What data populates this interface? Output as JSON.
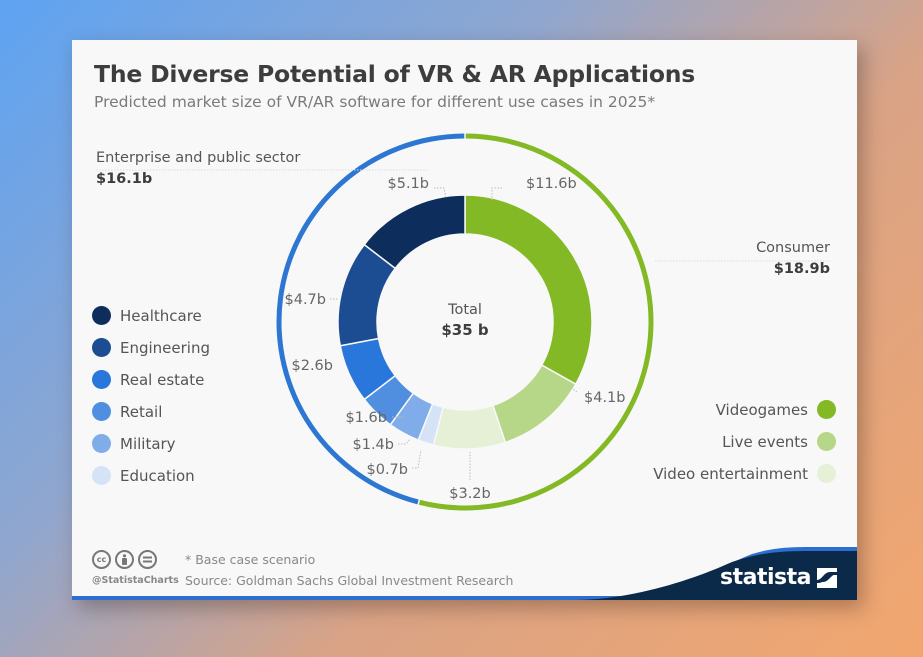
{
  "title": "The Diverse Potential of VR & AR Applications",
  "subtitle": "Predicted market size of VR/AR software for different use cases in 2025*",
  "chart_data": {
    "type": "pie",
    "variant": "nested-donut",
    "title": "The Diverse Potential of VR & AR Applications",
    "subtitle": "Predicted market size of VR/AR software for different use cases in 2025*",
    "unit": "USD billions",
    "total": {
      "label": "Total",
      "value": 35,
      "display": "$35 b"
    },
    "groups": [
      {
        "name": "Consumer",
        "value": 18.9,
        "display": "$18.9b",
        "color": "#83b925",
        "segments": [
          {
            "name": "Videogames",
            "value": 11.6,
            "display": "$11.6b",
            "color": "#83b925"
          },
          {
            "name": "Live events",
            "value": 4.1,
            "display": "$4.1b",
            "color": "#b6d787"
          },
          {
            "name": "Video entertainment",
            "value": 3.2,
            "display": "$3.2b",
            "color": "#e6f0d6"
          }
        ]
      },
      {
        "name": "Enterprise and public sector",
        "value": 16.1,
        "display": "$16.1b",
        "color": "#2d77d3",
        "segments": [
          {
            "name": "Education",
            "value": 0.7,
            "display": "$0.7b",
            "color": "#d5e3f7"
          },
          {
            "name": "Military",
            "value": 1.4,
            "display": "$1.4b",
            "color": "#80ade9"
          },
          {
            "name": "Retail",
            "value": 1.6,
            "display": "$1.6b",
            "color": "#508fe0"
          },
          {
            "name": "Real estate",
            "value": 2.6,
            "display": "$2.6b",
            "color": "#2a77dc"
          },
          {
            "name": "Engineering",
            "value": 4.7,
            "display": "$4.7b",
            "color": "#1c4c91"
          },
          {
            "name": "Healthcare",
            "value": 5.1,
            "display": "$5.1b",
            "color": "#0d2d5c"
          }
        ]
      }
    ],
    "legend_left": [
      "Healthcare",
      "Engineering",
      "Real estate",
      "Retail",
      "Military",
      "Education"
    ],
    "legend_right": [
      "Videogames",
      "Live events",
      "Video entertainment"
    ],
    "start_angle": "top",
    "direction": "clockwise"
  },
  "footer": {
    "note": "* Base case scenario",
    "source": "Source: Goldman Sachs Global Investment Research",
    "handle": "@StatistaCharts",
    "license_icons": [
      "cc",
      "by",
      "nd"
    ],
    "brand": "statista"
  },
  "colors": {
    "brand_navy": "#0b2a4a",
    "brand_blue": "#2d6fd0",
    "card_bg": "#f8f8f8"
  }
}
